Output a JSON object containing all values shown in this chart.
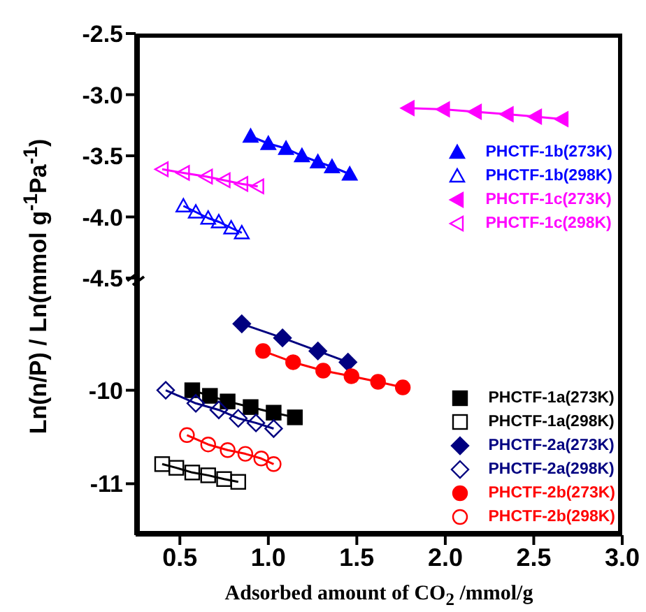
{
  "chart_data": [
    {
      "type": "line",
      "ylabel": "Ln(n/P) / Ln(mmol g$^{-1}$Pa$^{-1}$)",
      "xlim": [
        0.25,
        3.0
      ],
      "ylim": [
        -4.5,
        -2.5
      ],
      "yticks": [
        -4.5,
        {
          "value": -4,
          "label": "-4.0"
        },
        -3.5,
        {
          "value": -3,
          "label": "-3.0"
        },
        -2.5
      ],
      "tick_labels": "y",
      "legend": "right",
      "series": [
        {
          "name": "PHCTF-1b(273K)",
          "color": "#0000ff",
          "marker": "triangle",
          "x": [
            0.9,
            1.0,
            1.1,
            1.19,
            1.28,
            1.36,
            1.46
          ],
          "values": [
            -3.34,
            -3.4,
            -3.44,
            -3.5,
            -3.55,
            -3.59,
            -3.65
          ]
        },
        {
          "name": "PHCTF-1b(298K)",
          "color": "#0000ff",
          "marker": "triangle-open",
          "x": [
            0.52,
            0.59,
            0.66,
            0.72,
            0.79,
            0.85
          ],
          "values": [
            -3.91,
            -3.96,
            -4.01,
            -4.04,
            -4.09,
            -4.13
          ]
        },
        {
          "name": "PHCTF-1c(273K)",
          "color": "#ff00ff",
          "marker": "triangle-left",
          "x": [
            1.79,
            1.99,
            2.17,
            2.35,
            2.51,
            2.66
          ],
          "values": [
            -3.11,
            -3.12,
            -3.14,
            -3.16,
            -3.18,
            -3.2
          ]
        },
        {
          "name": "PHCTF-1c(298K)",
          "color": "#ff00ff",
          "marker": "triangle-left-open",
          "x": [
            0.4,
            0.52,
            0.65,
            0.75,
            0.85,
            0.94
          ],
          "values": [
            -3.61,
            -3.64,
            -3.67,
            -3.7,
            -3.73,
            -3.75
          ]
        }
      ]
    },
    {
      "type": "line",
      "xlabel": "Adsorbed amount of CO$_{2}$ /mmol/g",
      "xlim": [
        0.25,
        3.0
      ],
      "xticks": [
        0.5,
        {
          "value": 1,
          "label": "1.0"
        },
        1.5,
        {
          "value": 2,
          "label": "2.0"
        },
        2.5,
        {
          "value": 3,
          "label": "3.0"
        }
      ],
      "ylim": [
        -11.55,
        -8.8
      ],
      "yticks": [
        -11,
        -10
      ],
      "legend": "bottom right",
      "series": [
        {
          "name": "PHCTF-1a(273K)",
          "color": "#000000",
          "marker": "square",
          "x": [
            0.57,
            0.67,
            0.77,
            0.9,
            1.03,
            1.15
          ],
          "values": [
            -10.0,
            -10.06,
            -10.12,
            -10.18,
            -10.24,
            -10.29
          ]
        },
        {
          "name": "PHCTF-1a(298K)",
          "color": "#000000",
          "marker": "square-open",
          "x": [
            0.4,
            0.48,
            0.57,
            0.66,
            0.75,
            0.83
          ],
          "values": [
            -10.79,
            -10.83,
            -10.88,
            -10.91,
            -10.95,
            -10.98
          ]
        },
        {
          "name": "PHCTF-2a(273K)",
          "color": "#000080",
          "marker": "diamond",
          "x": [
            0.85,
            1.08,
            1.28,
            1.45
          ],
          "values": [
            -9.29,
            -9.44,
            -9.58,
            -9.7
          ]
        },
        {
          "name": "PHCTF-2a(298K)",
          "color": "#000080",
          "marker": "diamond-open",
          "x": [
            0.42,
            0.59,
            0.72,
            0.83,
            0.93,
            1.03
          ],
          "values": [
            -10.0,
            -10.14,
            -10.21,
            -10.3,
            -10.35,
            -10.41
          ]
        },
        {
          "name": "PHCTF-2b(273K)",
          "color": "#ff0000",
          "marker": "circle",
          "x": [
            0.97,
            1.14,
            1.31,
            1.47,
            1.62,
            1.76
          ],
          "values": [
            -9.58,
            -9.7,
            -9.79,
            -9.85,
            -9.91,
            -9.97
          ]
        },
        {
          "name": "PHCTF-2b(298K)",
          "color": "#ff0000",
          "marker": "circle-open",
          "x": [
            0.54,
            0.66,
            0.77,
            0.87,
            0.96,
            1.03
          ],
          "values": [
            -10.48,
            -10.58,
            -10.64,
            -10.68,
            -10.73,
            -10.79
          ]
        }
      ]
    }
  ]
}
